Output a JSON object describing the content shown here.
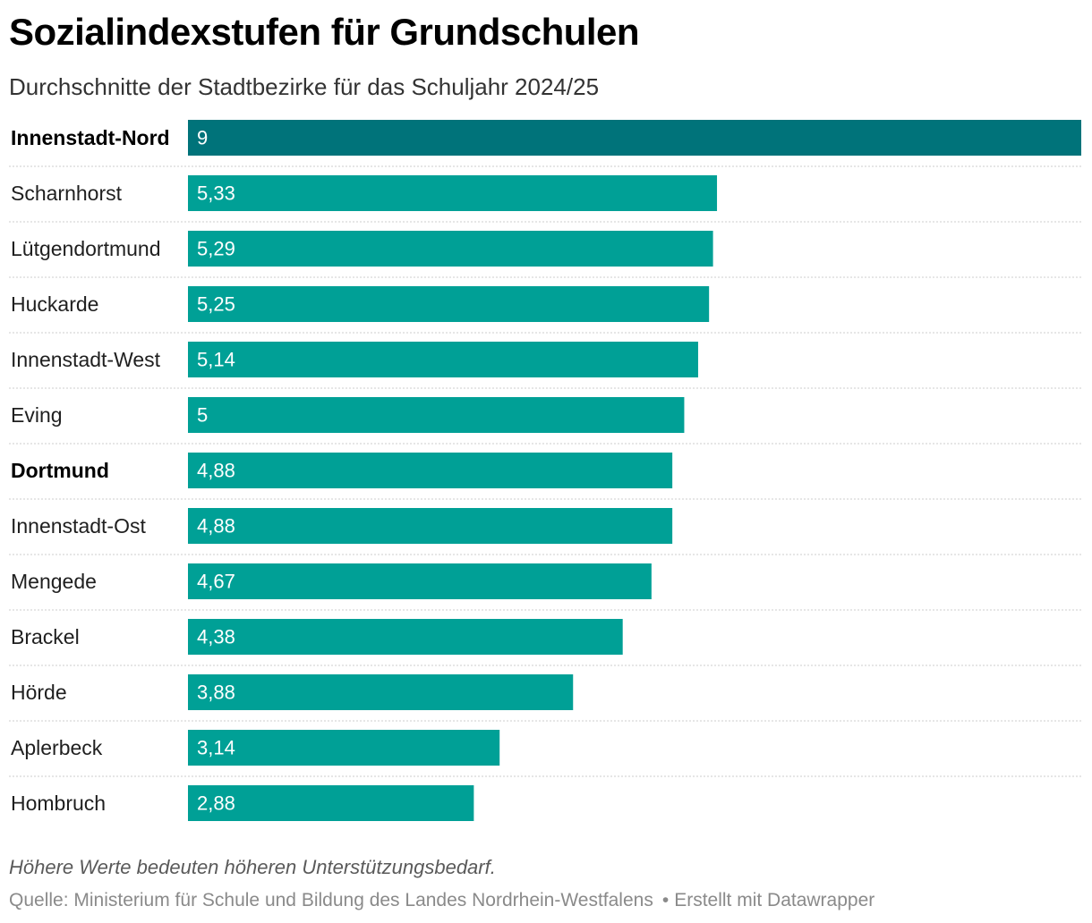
{
  "header": {
    "title": "Sozialindexstufen für Grundschulen",
    "subtitle": "Durchschnitte der Stadtbezirke für das Schuljahr 2024/25"
  },
  "footer": {
    "note": "Höhere Werte bedeuten höheren Unterstützungsbedarf.",
    "source": "Quelle: Ministerium für Schule und Bildung des Landes Nordrhein-Westfalens",
    "separator": "•",
    "credit": "Erstellt mit Datawrapper"
  },
  "colors": {
    "bar": "#00a096",
    "bar_highlight": "#00737a",
    "divider": "#cccccc"
  },
  "chart_data": {
    "type": "bar",
    "orientation": "horizontal",
    "title": "Sozialindexstufen für Grundschulen",
    "subtitle": "Durchschnitte der Stadtbezirke für das Schuljahr 2024/25",
    "xlim": [
      0,
      9
    ],
    "categories": [
      "Innenstadt-Nord",
      "Scharnhorst",
      "Lütgendortmund",
      "Huckarde",
      "Innenstadt-West",
      "Eving",
      "Dortmund",
      "Innenstadt-Ost",
      "Mengede",
      "Brackel",
      "Hörde",
      "Aplerbeck",
      "Hombruch"
    ],
    "values": [
      9,
      5.33,
      5.29,
      5.25,
      5.14,
      5,
      4.88,
      4.88,
      4.67,
      4.38,
      3.88,
      3.14,
      2.88
    ],
    "value_labels": [
      "9",
      "5,33",
      "5,29",
      "5,25",
      "5,14",
      "5",
      "4,88",
      "4,88",
      "4,67",
      "4,38",
      "3,88",
      "3,14",
      "2,88"
    ],
    "bold_categories": [
      "Innenstadt-Nord",
      "Dortmund"
    ],
    "highlight_category": "Innenstadt-Nord",
    "grid": false,
    "legend": "none"
  }
}
